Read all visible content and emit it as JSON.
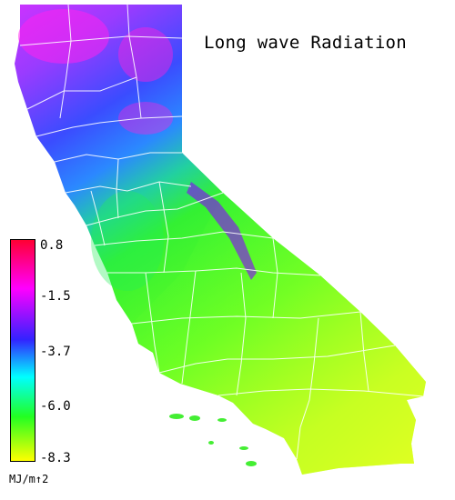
{
  "title": "Long wave Radiation",
  "legend": {
    "ticks": [
      "0.8",
      "-1.5",
      "-3.7",
      "-6.0",
      "-8.3"
    ],
    "units": "MJ/m↑2",
    "colors": [
      "#ff0033",
      "#ff00ff",
      "#3322ff",
      "#00ffff",
      "#22ff22",
      "#ffff00"
    ]
  },
  "map": {
    "region": "california",
    "border-color": "#ffffff"
  }
}
